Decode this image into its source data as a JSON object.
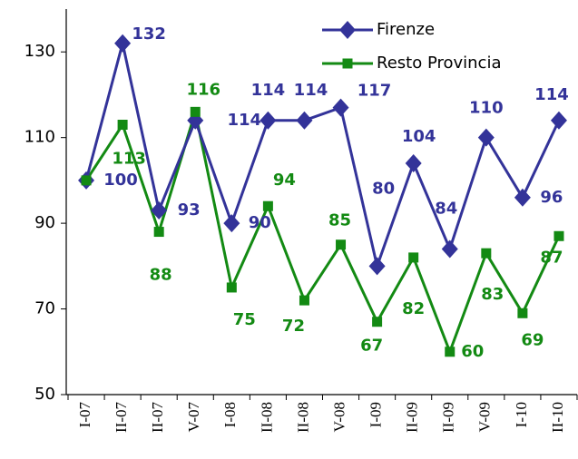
{
  "chart_data": {
    "type": "line",
    "categories": [
      "I-07",
      "II-07",
      "II-07",
      "V-07",
      "I-08",
      "II-08",
      "II-08",
      "V-08",
      "I-09",
      "II-09",
      "II-09",
      "V-09",
      "I-10",
      "II-10"
    ],
    "series": [
      {
        "name": "Firenze",
        "color": "#333399",
        "marker": "diamond",
        "values": [
          100,
          132,
          93,
          114,
          90,
          114,
          114,
          117,
          80,
          104,
          84,
          110,
          96,
          114
        ]
      },
      {
        "name": "Resto Provincia",
        "color": "#138a13",
        "marker": "square",
        "values": [
          100,
          113,
          88,
          116,
          75,
          94,
          72,
          85,
          67,
          82,
          60,
          83,
          69,
          87
        ],
        "value_labels": [
          null,
          "113",
          "88",
          "116",
          "75",
          "94",
          "72",
          "85",
          "67",
          "82",
          "60",
          "83",
          "69",
          "87"
        ]
      }
    ],
    "ylim": [
      50,
      140
    ],
    "yticks": [
      50,
      70,
      90,
      110,
      130
    ],
    "grid": false,
    "legend": "upper right"
  }
}
